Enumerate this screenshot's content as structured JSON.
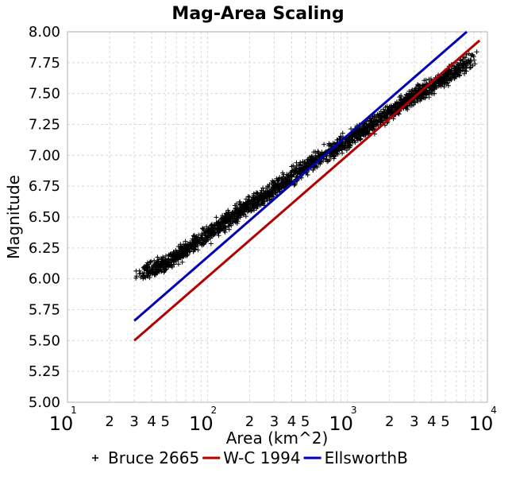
{
  "chart_data": {
    "type": "scatter",
    "title": "Mag-Area Scaling",
    "xlabel": "Area (km^2)",
    "ylabel": "Magnitude",
    "xscale": "log",
    "xlim": [
      10,
      10000
    ],
    "ylim": [
      5.0,
      8.0
    ],
    "yticks": [
      "5.00",
      "5.25",
      "5.50",
      "5.75",
      "6.00",
      "6.25",
      "6.50",
      "6.75",
      "7.00",
      "7.25",
      "7.50",
      "7.75",
      "8.00"
    ],
    "xticks_major": [
      {
        "base": "10",
        "exp": "1"
      },
      {
        "base": "10",
        "exp": "2"
      },
      {
        "base": "10",
        "exp": "3"
      },
      {
        "base": "10",
        "exp": "4"
      }
    ],
    "xticks_minor_labels": [
      "2",
      "3",
      "4",
      "5"
    ],
    "grid": true,
    "legend_position": "bottom",
    "series": [
      {
        "name": "Bruce 2665",
        "kind": "scatter",
        "marker": "+",
        "color": "#000000",
        "x": [
          30,
          35,
          40,
          45,
          50,
          60,
          70,
          80,
          100,
          120,
          150,
          180,
          200,
          250,
          300,
          350,
          400,
          500,
          600,
          700,
          800,
          1000,
          1200,
          1500,
          2000,
          2500,
          3000,
          4000,
          5000,
          6000,
          7000,
          8000,
          8800
        ],
        "y": [
          6.02,
          6.05,
          6.08,
          6.1,
          6.12,
          6.18,
          6.23,
          6.28,
          6.36,
          6.42,
          6.5,
          6.56,
          6.6,
          6.67,
          6.73,
          6.78,
          6.82,
          6.9,
          6.96,
          7.01,
          7.05,
          7.12,
          7.18,
          7.25,
          7.35,
          7.42,
          7.48,
          7.56,
          7.63,
          7.69,
          7.74,
          7.79,
          7.83
        ],
        "y_spread": 0.05
      },
      {
        "name": "W-C 1994",
        "kind": "line",
        "color": "#b30000",
        "x": [
          30,
          8800
        ],
        "y": [
          5.5,
          7.93
        ]
      },
      {
        "name": "EllsworthB",
        "kind": "line",
        "color": "#0000b3",
        "x": [
          30,
          8000
        ],
        "y": [
          5.66,
          8.05
        ]
      }
    ]
  }
}
